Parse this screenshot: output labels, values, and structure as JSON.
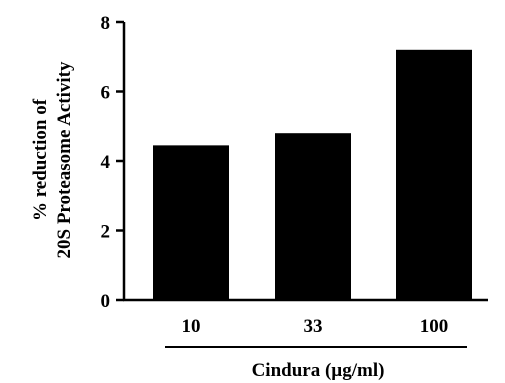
{
  "chart_data": {
    "type": "bar",
    "categories": [
      "10",
      "33",
      "100"
    ],
    "values": [
      4.45,
      4.8,
      7.2
    ],
    "ylim": [
      0,
      8
    ],
    "yticks": [
      "0",
      "2",
      "4",
      "6",
      "8"
    ],
    "ylabel_line1": "% reduction of",
    "ylabel_line2": "20S Proteasome Activity",
    "xlabel": "Cindura (µg/ml)",
    "grid": false,
    "bar_color": "#000000"
  }
}
